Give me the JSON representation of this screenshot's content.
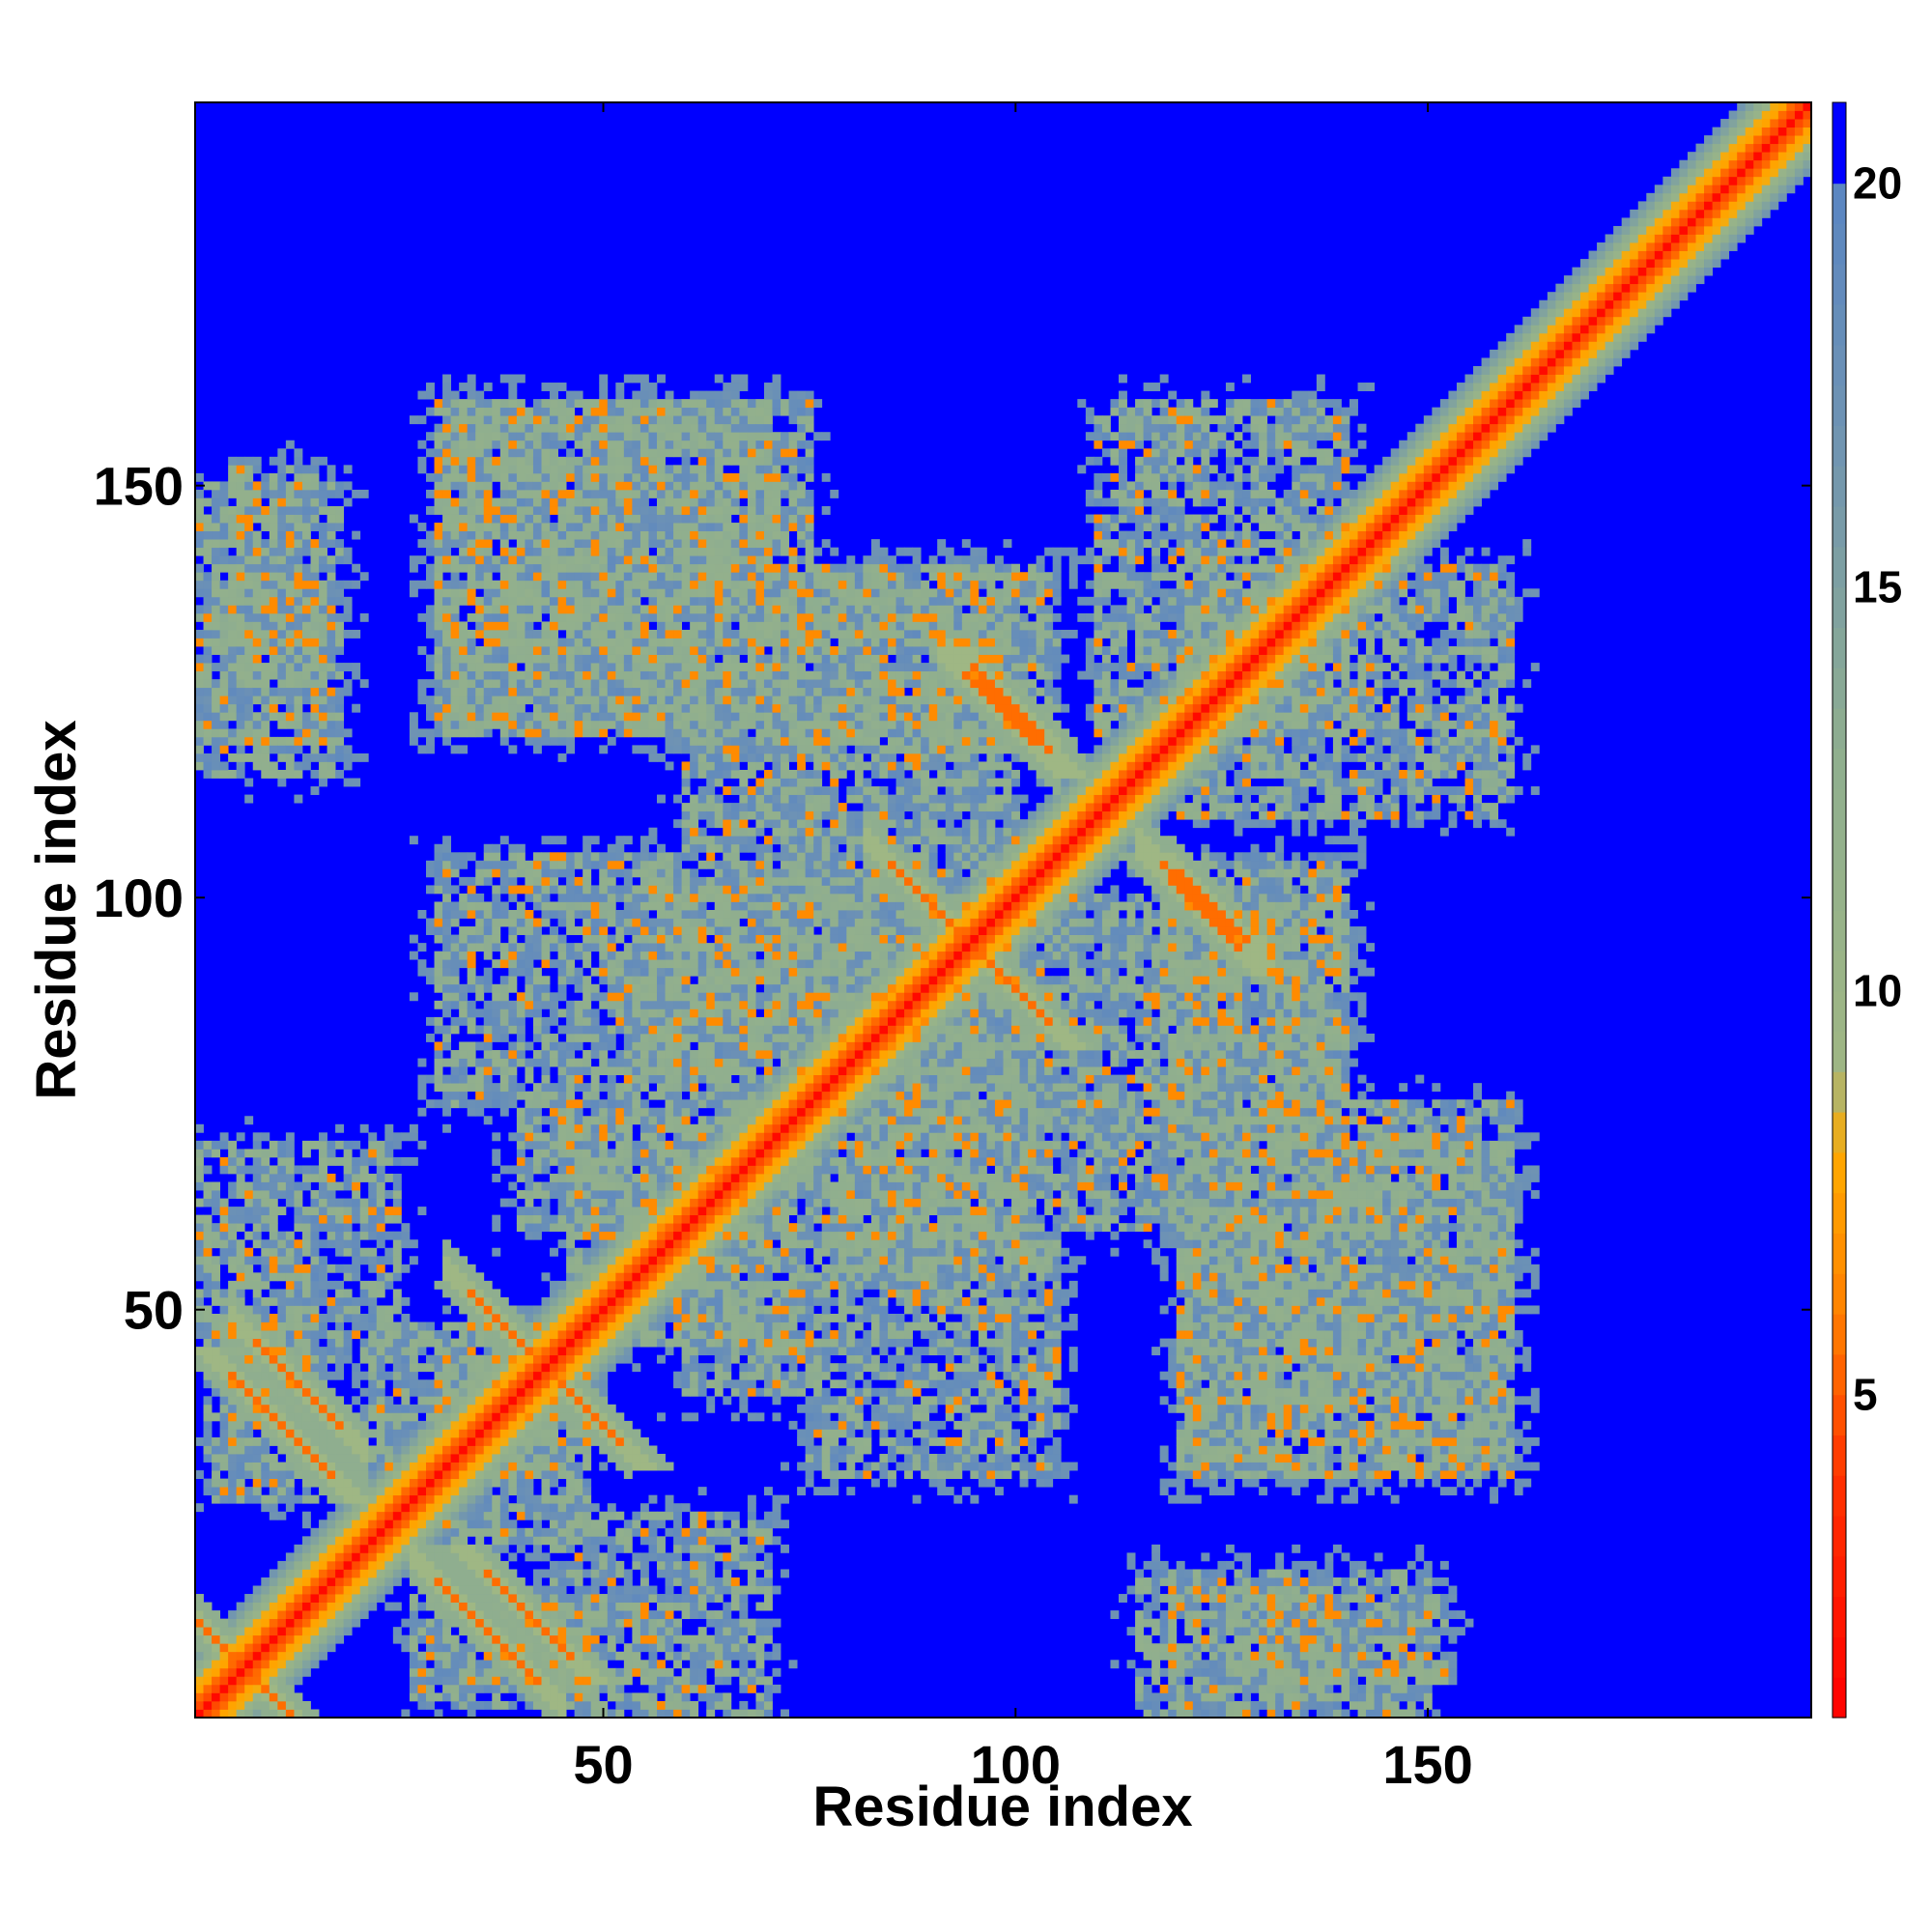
{
  "chart_data": {
    "type": "heatmap",
    "xlabel": "Residue index",
    "ylabel": "Residue index",
    "x_range": [
      1,
      196
    ],
    "y_range": [
      1,
      196
    ],
    "x_ticks": [
      50,
      100,
      150
    ],
    "y_ticks": [
      50,
      100,
      150
    ],
    "colorbar": {
      "range": [
        1,
        21
      ],
      "ticks": [
        5,
        10,
        15,
        20
      ],
      "stops": [
        {
          "value": 1,
          "color": "#ff0000"
        },
        {
          "value": 4,
          "color": "#ff3300"
        },
        {
          "value": 6,
          "color": "#ff8000"
        },
        {
          "value": 8,
          "color": "#ffaa00"
        },
        {
          "value": 9,
          "color": "#9fb784"
        },
        {
          "value": 13,
          "color": "#8fae8f"
        },
        {
          "value": 17,
          "color": "#6f93b3"
        },
        {
          "value": 20,
          "color": "#5a86c2"
        },
        {
          "value": 20.001,
          "color": "#0000ff"
        },
        {
          "value": 21,
          "color": "#0000ff"
        }
      ]
    },
    "matrix_description_values": {
      "diagonal_distance": 3.8,
      "background_distance": 21,
      "contact_blocks": [
        {
          "x": [
            22,
            45
          ],
          "y": [
            30,
            48
          ],
          "level": 13
        },
        {
          "x": [
            46,
            75
          ],
          "y": [
            52,
            73
          ],
          "level": 13
        },
        {
          "x": [
            60,
            85
          ],
          "y": [
            40,
            70
          ],
          "level": 13
        },
        {
          "x": [
            75,
            105
          ],
          "y": [
            30,
            70
          ],
          "level": 13
        },
        {
          "x": [
            85,
            110
          ],
          "y": [
            60,
            100
          ],
          "level": 13
        },
        {
          "x": [
            120,
            160
          ],
          "y": [
            30,
            70
          ],
          "level": 13
        },
        {
          "x": [
            55,
            90
          ],
          "y": [
            78,
            102
          ],
          "level": 13
        },
        {
          "x": [
            108,
            140
          ],
          "y": [
            60,
            100
          ],
          "level": 13
        },
        {
          "x": [
            130,
            160
          ],
          "y": [
            35,
            60
          ],
          "level": 13
        },
        {
          "x": [
            2,
            15
          ],
          "y": [
            27,
            50
          ],
          "level": 13
        },
        {
          "x": [
            44,
            70
          ],
          "y": [
            1,
            25
          ],
          "level": 13
        },
        {
          "x": [
            115,
            150
          ],
          "y": [
            1,
            18
          ],
          "level": 13
        },
        {
          "x": [
            5,
            15
          ],
          "y": [
            126,
            152
          ],
          "level": 13
        },
        {
          "x": [
            30,
            75
          ],
          "y": [
            120,
            160
          ],
          "level": 13
        },
        {
          "x": [
            110,
            140
          ],
          "y": [
            120,
            160
          ],
          "level": 13
        },
        {
          "x": [
            75,
            105
          ],
          "y": [
            118,
            140
          ],
          "level": 13
        },
        {
          "x": [
            90,
            115
          ],
          "y": [
            75,
            100
          ],
          "level": 13
        }
      ],
      "antiparallel_strands": [
        {
          "from": [
            8,
            46
          ],
          "to": [
            18,
            36
          ]
        },
        {
          "from": [
            30,
            17
          ],
          "to": [
            42,
            5
          ]
        },
        {
          "from": [
            34,
            52
          ],
          "to": [
            50,
            36
          ]
        },
        {
          "from": [
            85,
            104
          ],
          "to": [
            101,
            88
          ]
        },
        {
          "from": [
            94,
            127
          ],
          "to": [
            102,
            119
          ]
        },
        {
          "from": [
            118,
            104
          ],
          "to": [
            128,
            95
          ]
        },
        {
          "from": [
            1,
            12
          ],
          "to": [
            12,
            1
          ]
        }
      ]
    }
  }
}
